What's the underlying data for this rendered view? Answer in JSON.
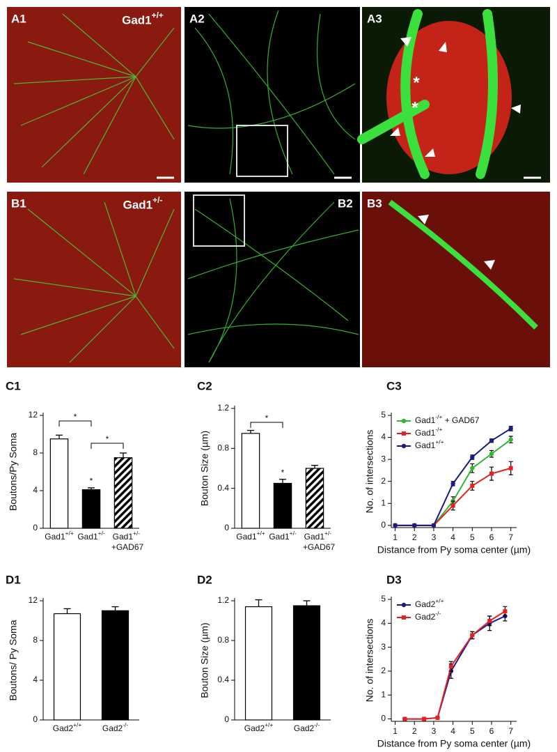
{
  "panels": [
    {
      "label": "A1",
      "genotype": "Gad1+/+"
    },
    {
      "label": "A2"
    },
    {
      "label": "A3",
      "marks": [
        "*",
        "*"
      ]
    },
    {
      "label": "B1",
      "genotype": "Gad1+/-"
    },
    {
      "label": "B2"
    },
    {
      "label": "B3"
    }
  ],
  "chart_data": [
    {
      "type": "bar",
      "panel": "C1",
      "ylabel": "Boutons/Py Soma",
      "categories": [
        "Gad1+/+",
        "Gad1+/-",
        "Gad1+/- +GAD67"
      ],
      "values": [
        9.5,
        4.1,
        7.5
      ],
      "errors": [
        0.4,
        0.2,
        0.5
      ],
      "fills": [
        "white",
        "black",
        "hatch"
      ],
      "ylim": [
        0,
        12
      ],
      "yticks": [
        0,
        4,
        8,
        12
      ],
      "annotations": [
        "*",
        "*",
        "*"
      ]
    },
    {
      "type": "bar",
      "panel": "C2",
      "ylabel": "Bouton Size (µm)",
      "categories": [
        "Gad1+/+",
        "Gad1+/-",
        "Gad1+/- +GAD67"
      ],
      "values": [
        0.95,
        0.45,
        0.6
      ],
      "errors": [
        0.03,
        0.04,
        0.03
      ],
      "fills": [
        "white",
        "black",
        "hatch"
      ],
      "ylim": [
        0,
        1.2
      ],
      "yticks": [
        0,
        0.4,
        0.8,
        1.2
      ],
      "annotations": [
        "*",
        "*"
      ]
    },
    {
      "type": "line",
      "panel": "C3",
      "xlabel": "Distance from Py soma center (µm)",
      "ylabel": "No. of intersections",
      "x": [
        1,
        2,
        3,
        4,
        5,
        6,
        7
      ],
      "series": [
        {
          "name": "Gad1-/+ + GAD67",
          "color": "#2eb82e",
          "marker": "circle",
          "values": [
            0,
            0,
            0,
            1.1,
            2.6,
            3.25,
            3.9
          ],
          "errors": [
            0,
            0,
            0,
            0.2,
            0.2,
            0.15,
            0.15
          ]
        },
        {
          "name": "Gad1-/+",
          "color": "#e62020",
          "marker": "square",
          "values": [
            0,
            0,
            0,
            0.9,
            1.8,
            2.35,
            2.6
          ],
          "errors": [
            0,
            0,
            0,
            0.2,
            0.2,
            0.3,
            0.3
          ]
        },
        {
          "name": "Gad1+/+",
          "color": "#1a1a8c",
          "marker": "circle",
          "values": [
            0,
            0,
            0,
            1.9,
            3.1,
            3.85,
            4.4
          ],
          "errors": [
            0,
            0,
            0,
            0.1,
            0.1,
            0.08,
            0.1
          ]
        }
      ],
      "xlim": [
        0.8,
        7.3
      ],
      "xticks": [
        1,
        2,
        3,
        4,
        5,
        6,
        7
      ],
      "ylim": [
        -0.1,
        5
      ],
      "yticks": [
        0,
        1,
        2,
        3,
        4,
        5
      ],
      "legend": "upper left"
    },
    {
      "type": "bar",
      "panel": "D1",
      "ylabel": "Boutons/ Py Soma",
      "categories": [
        "Gad2+/+",
        "Gad2-/-"
      ],
      "values": [
        10.7,
        11.0
      ],
      "errors": [
        0.5,
        0.4
      ],
      "fills": [
        "white",
        "black"
      ],
      "ylim": [
        0,
        12
      ],
      "yticks": [
        0,
        4,
        8,
        12
      ]
    },
    {
      "type": "bar",
      "panel": "D2",
      "ylabel": "Bouton Size (µm)",
      "categories": [
        "Gad2+/+",
        "Gad2-/-"
      ],
      "values": [
        1.14,
        1.15
      ],
      "errors": [
        0.07,
        0.05
      ],
      "fills": [
        "white",
        "black"
      ],
      "ylim": [
        0,
        1.2
      ],
      "yticks": [
        0,
        0.4,
        0.8,
        1.2
      ]
    },
    {
      "type": "line",
      "panel": "D3",
      "xlabel": "Distance from Py soma center (µm)",
      "ylabel": "No. of intersections",
      "x": [
        1.5,
        2.5,
        3.2,
        3.9,
        5,
        5.9,
        6.7
      ],
      "series": [
        {
          "name": "Gad2+/+",
          "color": "#1a1a8c",
          "marker": "circle",
          "values": [
            0,
            0,
            0.05,
            2.0,
            3.5,
            4.0,
            4.3
          ],
          "errors": [
            0,
            0,
            0,
            0.3,
            0.15,
            0.3,
            0.2
          ]
        },
        {
          "name": "Gad2-/-",
          "color": "#e62020",
          "marker": "square",
          "values": [
            0,
            0,
            0.05,
            2.2,
            3.5,
            4.1,
            4.5
          ],
          "errors": [
            0,
            0,
            0,
            0.2,
            0.15,
            0.2,
            0.2
          ]
        }
      ],
      "xlim": [
        0.8,
        7.3
      ],
      "xticks": [
        1,
        2,
        3,
        4,
        5,
        6,
        7
      ],
      "ylim": [
        -0.1,
        5
      ],
      "yticks": [
        0,
        1,
        2,
        3,
        4,
        5
      ],
      "legend": "upper left"
    }
  ]
}
